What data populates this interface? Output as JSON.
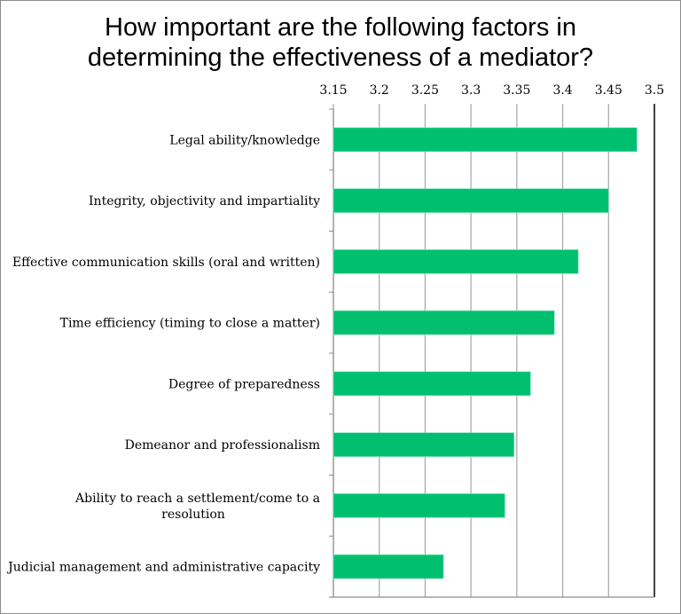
{
  "chart_data": {
    "type": "bar",
    "orientation": "horizontal",
    "title": "How important are the following factors in determining the effectiveness of a mediator?",
    "title_lines": [
      "How important are the following factors in",
      "determining the effectiveness of a mediator?"
    ],
    "categories": [
      "Legal ability/knowledge",
      "Integrity, objectivity and impartiality",
      "Effective communication skills (oral and written)",
      "Time efficiency (timing to close a matter)",
      "Degree of preparedness",
      "Demeanor and professionalism",
      "Ability to reach a settlement/come to a resolution",
      "Judicial management and administrative capacity"
    ],
    "category_lines": [
      [
        "Legal ability/knowledge"
      ],
      [
        "Integrity, objectivity and impartiality"
      ],
      [
        "Effective communication skills (oral and written)"
      ],
      [
        "Time efficiency (timing to close a matter)"
      ],
      [
        "Degree of preparedness"
      ],
      [
        "Demeanor and professionalism"
      ],
      [
        "Ability to reach a settlement/come to a",
        "resolution"
      ],
      [
        "Judicial management and administrative capacity"
      ]
    ],
    "values": [
      3.481,
      3.45,
      3.417,
      3.391,
      3.365,
      3.347,
      3.337,
      3.27
    ],
    "xlim": [
      3.15,
      3.5
    ],
    "xticks": [
      "3.15",
      "3.2",
      "3.25",
      "3.3",
      "3.35",
      "3.4",
      "3.45",
      "3.5"
    ],
    "xaxis_position": "top",
    "grid": true,
    "xlabel": "",
    "ylabel": "",
    "bar_color": "#00c06f"
  }
}
